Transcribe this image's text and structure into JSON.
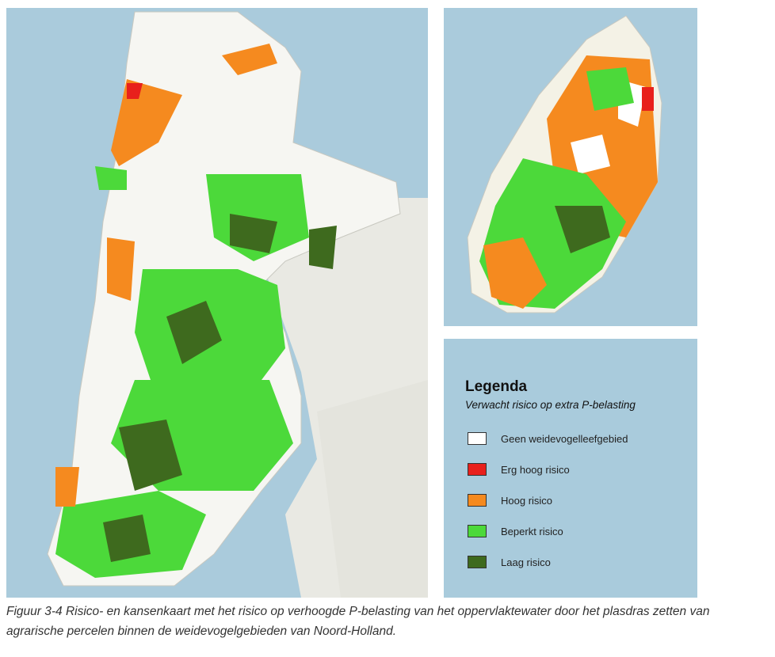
{
  "legend": {
    "title": "Legenda",
    "subtitle": "Verwacht risico op extra P-belasting",
    "items": [
      {
        "label": "Geen weidevogelleefgebied",
        "color": "#ffffff"
      },
      {
        "label": "Erg hoog risico",
        "color": "#e8201c"
      },
      {
        "label": "Hoog risico",
        "color": "#f58a1f"
      },
      {
        "label": "Beperkt risico",
        "color": "#4cd93a"
      },
      {
        "label": "Laag risico",
        "color": "#3e6a1e"
      }
    ]
  },
  "caption": "Figuur 3-4 Risico- en kansenkaart met het risico op verhoogde P-belasting van het oppervlaktewater door het plasdras zetten van agrarische percelen binnen de weidevogelgebieden van Noord-Holland."
}
